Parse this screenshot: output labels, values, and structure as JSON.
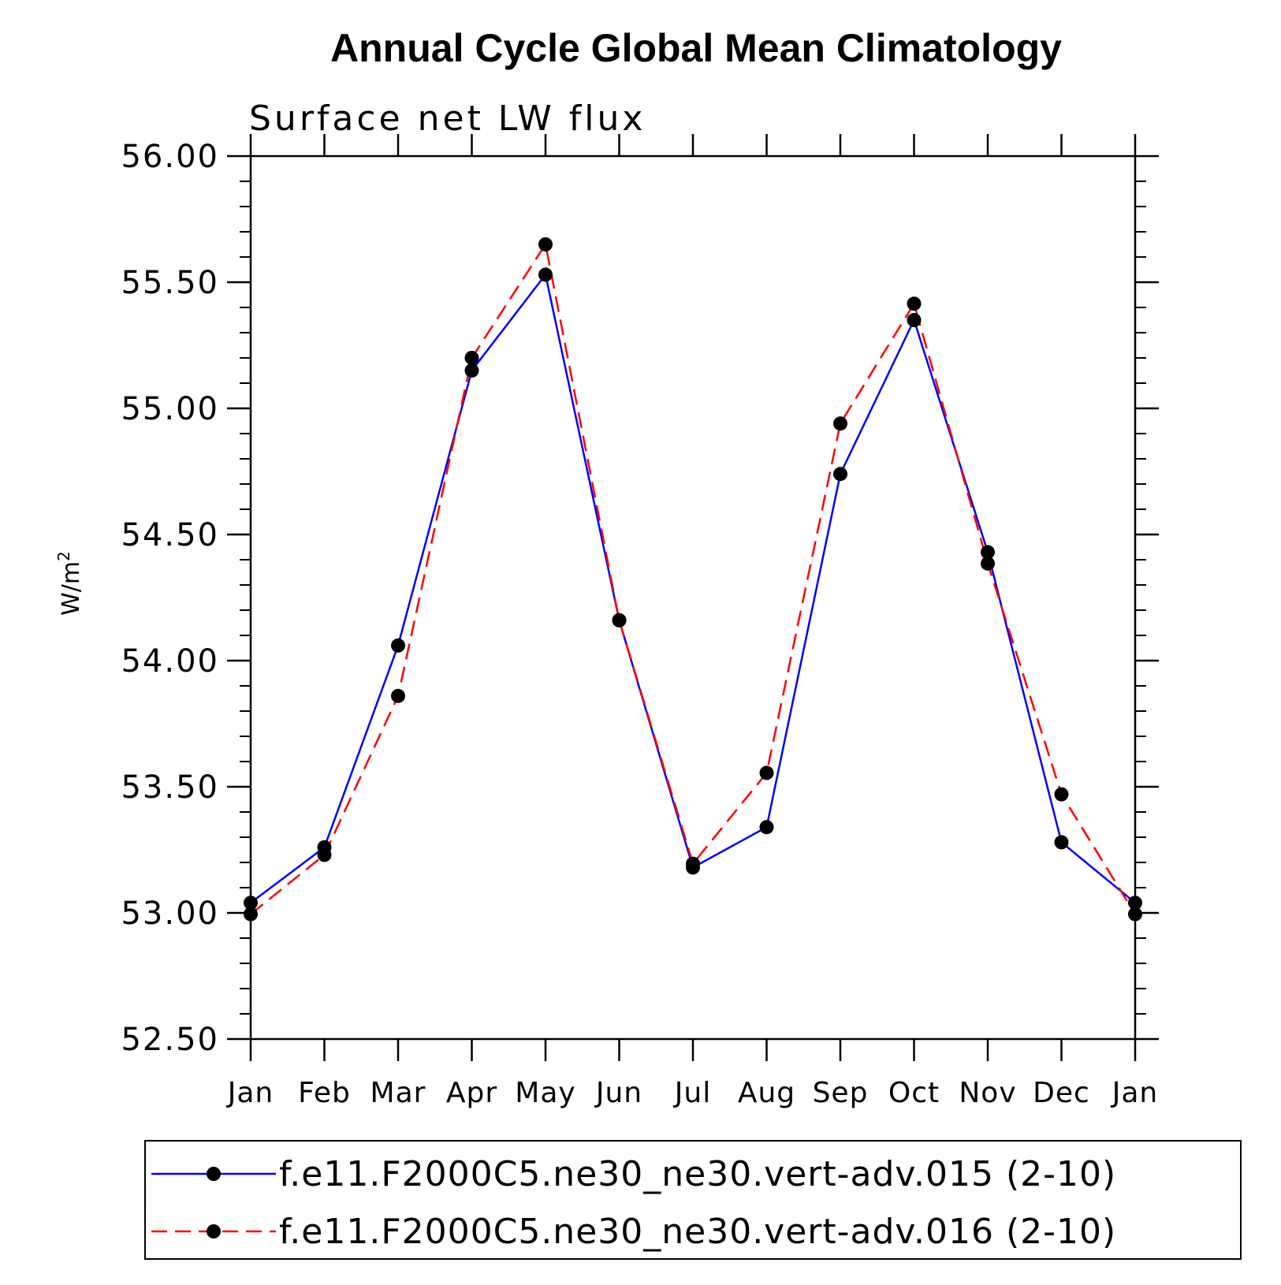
{
  "chart_data": {
    "type": "line",
    "title": "Annual Cycle Global Mean Climatology",
    "subtitle": "Surface net LW flux",
    "ylabel": "W/m",
    "ylabel_superscript": "2",
    "ylim": [
      52.5,
      56.0
    ],
    "yticks": [
      "52.50",
      "53.00",
      "53.50",
      "54.00",
      "54.50",
      "55.00",
      "55.50",
      "56.00"
    ],
    "categories": [
      "Jan",
      "Feb",
      "Mar",
      "Apr",
      "May",
      "Jun",
      "Jul",
      "Aug",
      "Sep",
      "Oct",
      "Nov",
      "Dec",
      "Jan"
    ],
    "series": [
      {
        "name": "f.e11.F2000C5.ne30_ne30.vert-adv.015 (2-10)",
        "color": "#0000ff",
        "style": "solid",
        "values": [
          53.04,
          53.26,
          54.06,
          55.15,
          55.53,
          54.16,
          53.18,
          53.34,
          54.74,
          55.35,
          54.43,
          53.28,
          53.04
        ]
      },
      {
        "name": "f.e11.F2000C5.ne30_ne30.vert-adv.016 (2-10)",
        "color": "#ff0000",
        "style": "dashed",
        "values": [
          52.995,
          53.23,
          53.86,
          55.2,
          55.65,
          54.16,
          53.195,
          53.555,
          54.94,
          55.415,
          54.385,
          53.47,
          52.995
        ]
      }
    ],
    "marker_color": "#000000",
    "legend_position": "bottom"
  }
}
